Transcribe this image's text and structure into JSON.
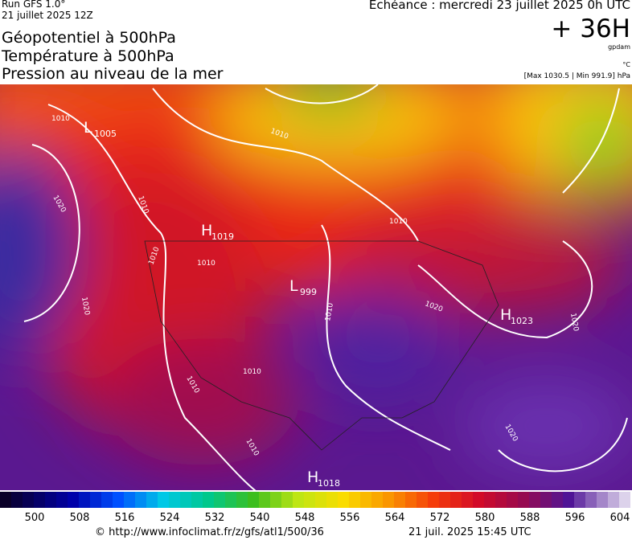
{
  "header": {
    "run": "Run GFS 1.0°",
    "date": "21 juillet 2025 12Z",
    "titles": [
      "Géopotentiel à 500hPa",
      "Température à 500hPa",
      "Pression au niveau de la mer"
    ],
    "echeance": "Echéance : mercredi 23 juillet 2025 0h UTC",
    "lead": "+ 36H",
    "unit_geo": "gpdam",
    "unit_temp": "°C",
    "pressure_range": "[Max 1030.5 | Min 991.9] hPa"
  },
  "map": {
    "centers": [
      {
        "letter": "L",
        "value": "1005"
      },
      {
        "letter": "H",
        "value": "1019"
      },
      {
        "letter": "L",
        "value": "999"
      },
      {
        "letter": "H",
        "value": "1023"
      },
      {
        "letter": "H",
        "value": "1018"
      }
    ],
    "isobar_labels": [
      "1010",
      "1010",
      "1010",
      "1020",
      "1010",
      "1010",
      "1010",
      "1010",
      "1020",
      "1020",
      "1020",
      "1010",
      "1010",
      "1010",
      "1020"
    ]
  },
  "colorbar": {
    "ticks": [
      "500",
      "508",
      "516",
      "524",
      "532",
      "540",
      "548",
      "556",
      "564",
      "572",
      "580",
      "588",
      "596",
      "604"
    ]
  },
  "footer": {
    "source": "© http://www.infoclimat.fr/z/gfs/atl1/500/36",
    "issued": "21 juil. 2025 15:45 UTC"
  }
}
